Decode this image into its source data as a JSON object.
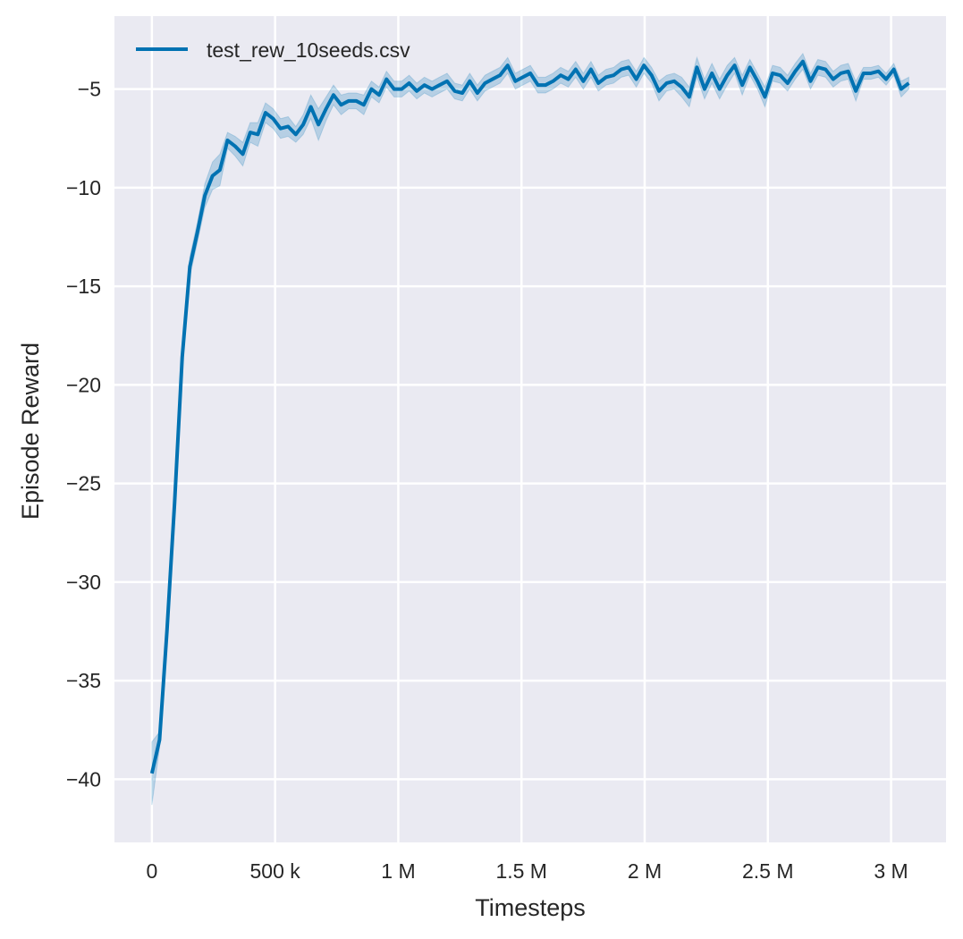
{
  "chart_data": {
    "type": "line",
    "title": "",
    "xlabel": "Timesteps",
    "ylabel": "Episode Reward",
    "xlim": [
      -152000,
      3223000
    ],
    "ylim": [
      -43.2,
      -1.3
    ],
    "grid": true,
    "background": "#EAEAF2",
    "legend": {
      "placement": "top-left",
      "entries": [
        "test_rew_10seeds.csv"
      ]
    },
    "xticks": [
      {
        "value": 0,
        "label": "0"
      },
      {
        "value": 500000,
        "label": "500 k"
      },
      {
        "value": 1000000,
        "label": "1 M"
      },
      {
        "value": 1500000,
        "label": "1.5 M"
      },
      {
        "value": 2000000,
        "label": "2 M"
      },
      {
        "value": 2500000,
        "label": "2.5 M"
      },
      {
        "value": 3000000,
        "label": "3 M"
      }
    ],
    "yticks": [
      {
        "value": -5,
        "label": "−5"
      },
      {
        "value": -10,
        "label": "−10"
      },
      {
        "value": -15,
        "label": "−15"
      },
      {
        "value": -20,
        "label": "−20"
      },
      {
        "value": -25,
        "label": "−25"
      },
      {
        "value": -30,
        "label": "−30"
      },
      {
        "value": -35,
        "label": "−35"
      },
      {
        "value": -40,
        "label": "−40"
      }
    ],
    "series": [
      {
        "name": "test_rew_10seeds.csv",
        "color": "#0072B2",
        "x": [
          0,
          31000,
          61000,
          92000,
          123000,
          154000,
          184000,
          215000,
          246000,
          276000,
          307000,
          338000,
          369000,
          399000,
          430000,
          461000,
          492000,
          522000,
          553000,
          584000,
          614000,
          645000,
          676000,
          707000,
          737000,
          768000,
          799000,
          829000,
          860000,
          891000,
          922000,
          952000,
          983000,
          1014000,
          1044000,
          1075000,
          1106000,
          1137000,
          1167000,
          1198000,
          1229000,
          1260000,
          1290000,
          1321000,
          1352000,
          1382000,
          1413000,
          1444000,
          1475000,
          1505000,
          1536000,
          1567000,
          1597000,
          1628000,
          1659000,
          1690000,
          1720000,
          1751000,
          1782000,
          1812000,
          1843000,
          1874000,
          1905000,
          1935000,
          1966000,
          1997000,
          2028000,
          2058000,
          2089000,
          2120000,
          2150000,
          2181000,
          2212000,
          2243000,
          2273000,
          2304000,
          2335000,
          2365000,
          2396000,
          2427000,
          2458000,
          2488000,
          2519000,
          2550000,
          2580000,
          2611000,
          2642000,
          2673000,
          2703000,
          2734000,
          2765000,
          2796000,
          2826000,
          2857000,
          2888000,
          2918000,
          2949000,
          2980000,
          3011000,
          3041000,
          3072000
        ],
        "y": [
          -39.7,
          -38,
          -32.5,
          -26,
          -18.6,
          -14,
          -12.3,
          -10.4,
          -9.4,
          -9.1,
          -7.6,
          -7.9,
          -8.3,
          -7.2,
          -7.3,
          -6.2,
          -6.5,
          -7.0,
          -6.9,
          -7.3,
          -6.8,
          -5.9,
          -6.8,
          -6.0,
          -5.3,
          -5.8,
          -5.6,
          -5.6,
          -5.8,
          -5.0,
          -5.3,
          -4.5,
          -5.0,
          -5.0,
          -4.7,
          -5.1,
          -4.8,
          -5.0,
          -4.8,
          -4.6,
          -5.1,
          -5.2,
          -4.6,
          -5.2,
          -4.7,
          -4.5,
          -4.3,
          -3.8,
          -4.6,
          -4.4,
          -4.2,
          -4.8,
          -4.8,
          -4.6,
          -4.3,
          -4.5,
          -4.0,
          -4.6,
          -4.0,
          -4.7,
          -4.4,
          -4.3,
          -4.0,
          -3.9,
          -4.5,
          -3.8,
          -4.3,
          -5.1,
          -4.7,
          -4.6,
          -4.9,
          -5.4,
          -3.9,
          -5.0,
          -4.2,
          -5.0,
          -4.3,
          -3.8,
          -4.8,
          -3.9,
          -4.6,
          -5.4,
          -4.2,
          -4.3,
          -4.7,
          -4.1,
          -3.6,
          -4.6,
          -3.9,
          -4.0,
          -4.5,
          -4.2,
          -4.1,
          -5.1,
          -4.2,
          -4.2,
          -4.1,
          -4.5,
          -4.0,
          -5.0,
          -4.7
        ],
        "band_halfwidth": [
          1.6,
          0.4,
          0.5,
          0.5,
          0.4,
          0.5,
          0.5,
          0.6,
          0.7,
          0.8,
          0.4,
          0.5,
          0.6,
          0.5,
          0.6,
          0.5,
          0.5,
          0.5,
          0.5,
          0.4,
          0.5,
          0.6,
          0.8,
          0.6,
          0.5,
          0.5,
          0.4,
          0.4,
          0.5,
          0.4,
          0.4,
          0.4,
          0.4,
          0.4,
          0.4,
          0.4,
          0.4,
          0.4,
          0.4,
          0.4,
          0.4,
          0.4,
          0.4,
          0.4,
          0.4,
          0.4,
          0.4,
          0.4,
          0.4,
          0.4,
          0.4,
          0.4,
          0.4,
          0.4,
          0.4,
          0.4,
          0.4,
          0.4,
          0.4,
          0.4,
          0.4,
          0.4,
          0.4,
          0.4,
          0.4,
          0.4,
          0.4,
          0.5,
          0.4,
          0.4,
          0.5,
          0.5,
          0.5,
          0.5,
          0.5,
          0.5,
          0.5,
          0.4,
          0.5,
          0.4,
          0.4,
          0.5,
          0.4,
          0.4,
          0.4,
          0.4,
          0.4,
          0.4,
          0.4,
          0.4,
          0.4,
          0.4,
          0.4,
          0.5,
          0.3,
          0.3,
          0.3,
          0.3,
          0.3,
          0.4,
          0.3
        ]
      }
    ]
  }
}
